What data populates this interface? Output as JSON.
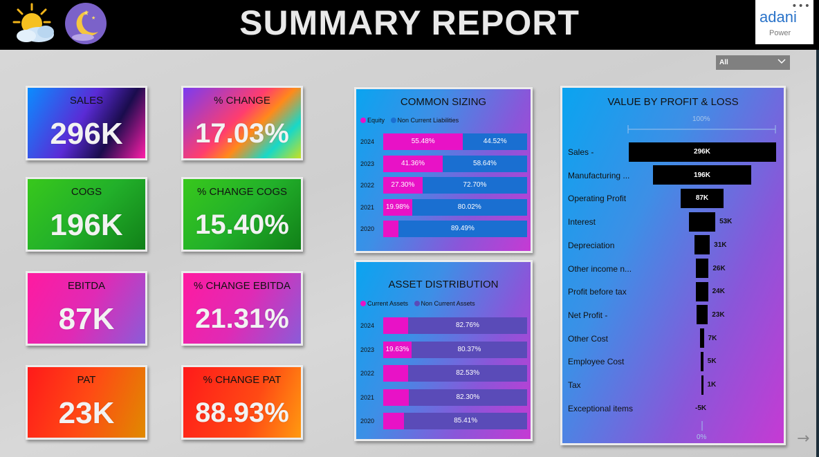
{
  "header": {
    "title": "SUMMARY REPORT",
    "logo_text": "adani",
    "logo_sub": "Power",
    "more_label": "•••"
  },
  "slicer": {
    "selected": "All"
  },
  "kpis": [
    {
      "label": "SALES",
      "value": "296K"
    },
    {
      "label": "% CHANGE",
      "value": "17.03%"
    },
    {
      "label": "COGS",
      "value": "196K"
    },
    {
      "label": "% CHANGE COGS",
      "value": "15.40%"
    },
    {
      "label": "EBITDA",
      "value": "87K"
    },
    {
      "label": "% CHANGE EBITDA",
      "value": "21.31%"
    },
    {
      "label": "PAT",
      "value": "23K"
    },
    {
      "label": "% CHANGE PAT",
      "value": "88.93%"
    }
  ],
  "colors": {
    "equity": "#e812c6",
    "non_current_liabilities": "#1a6fd1",
    "current_assets": "#e812c6",
    "non_current_assets": "#5a4bb8",
    "bar": "#000000"
  },
  "chart_data": [
    {
      "type": "bar",
      "title": "COMMON SIZING",
      "stacked": true,
      "orientation": "horizontal",
      "categories": [
        "2024",
        "2023",
        "2022",
        "2021",
        "2020"
      ],
      "series": [
        {
          "name": "Equity",
          "values": [
            55.48,
            41.36,
            27.3,
            19.98,
            10.51
          ],
          "labels": [
            "55.48%",
            "41.36%",
            "27.30%",
            "19.98%",
            ""
          ]
        },
        {
          "name": "Non Current Liabilities",
          "values": [
            44.52,
            58.64,
            72.7,
            80.02,
            89.49
          ],
          "labels": [
            "44.52%",
            "58.64%",
            "72.70%",
            "80.02%",
            "89.49%"
          ]
        }
      ]
    },
    {
      "type": "bar",
      "title": "ASSET DISTRIBUTION",
      "stacked": true,
      "orientation": "horizontal",
      "categories": [
        "2024",
        "2023",
        "2022",
        "2021",
        "2020"
      ],
      "series": [
        {
          "name": "Current Assets",
          "values": [
            17.24,
            19.63,
            17.47,
            17.7,
            14.59
          ],
          "labels": [
            "",
            "19.63%",
            "",
            "",
            ""
          ]
        },
        {
          "name": "Non Current Assets",
          "values": [
            82.76,
            80.37,
            82.53,
            82.3,
            85.41
          ],
          "labels": [
            "82.76%",
            "80.37%",
            "82.53%",
            "82.30%",
            "85.41%"
          ]
        }
      ]
    },
    {
      "type": "bar",
      "title": "VALUE BY PROFIT & LOSS",
      "orientation": "funnel",
      "axis_top": "100%",
      "axis_bottom": "0%",
      "categories": [
        "Sales -",
        "Manufacturing ...",
        "Operating Profit",
        "Interest",
        "Depreciation",
        "Other income n...",
        "Profit before tax",
        "Net Profit -",
        "Other Cost",
        "Employee Cost",
        "Tax",
        "Exceptional items"
      ],
      "values": [
        296,
        196,
        87,
        53,
        31,
        26,
        24,
        23,
        7,
        5,
        1,
        -5
      ],
      "labels": [
        "296K",
        "196K",
        "87K",
        "53K",
        "31K",
        "26K",
        "24K",
        "23K",
        "7K",
        "5K",
        "1K",
        "-5K"
      ]
    }
  ]
}
